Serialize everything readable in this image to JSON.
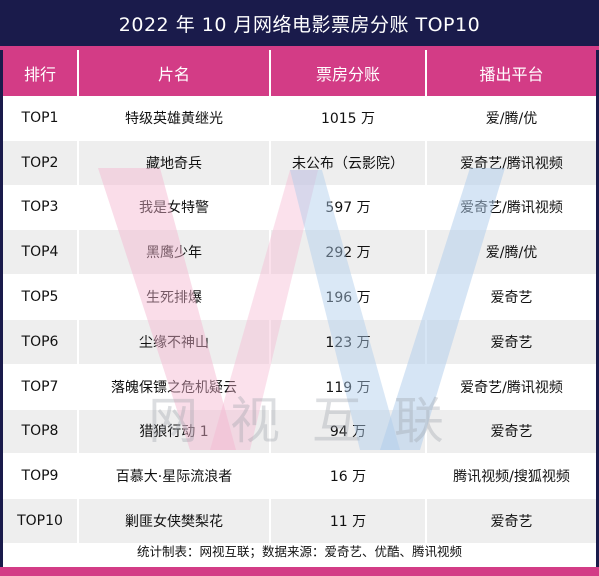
{
  "title": "2022 年 10 月网络电影票房分账 TOP10",
  "columns": [
    "排行",
    "片名",
    "票房分账",
    "播出平台"
  ],
  "rows": [
    {
      "rank": "TOP1",
      "name": "特级英雄黄继光",
      "box": "1015 万",
      "platform": "爱/腾/优"
    },
    {
      "rank": "TOP2",
      "name": "藏地奇兵",
      "box": "未公布（云影院）",
      "platform": "爱奇艺/腾讯视频"
    },
    {
      "rank": "TOP3",
      "name": "我是女特警",
      "box": "597 万",
      "platform": "爱奇艺/腾讯视频"
    },
    {
      "rank": "TOP4",
      "name": "黑鹰少年",
      "box": "292 万",
      "platform": "爱/腾/优"
    },
    {
      "rank": "TOP5",
      "name": "生死排爆",
      "box": "196 万",
      "platform": "爱奇艺"
    },
    {
      "rank": "TOP6",
      "name": "尘缘不神山",
      "box": "123 万",
      "platform": "爱奇艺"
    },
    {
      "rank": "TOP7",
      "name": "落魄保镖之危机疑云",
      "box": "119 万",
      "platform": "爱奇艺/腾讯视频"
    },
    {
      "rank": "TOP8",
      "name": "猎狼行动 1",
      "box": "94 万",
      "platform": "爱奇艺"
    },
    {
      "rank": "TOP9",
      "name": "百慕大·星际流浪者",
      "box": "16 万",
      "platform": "腾讯视频/搜狐视频"
    },
    {
      "rank": "TOP10",
      "name": "剿匪女侠樊梨花",
      "box": "11 万",
      "platform": "爱奇艺"
    }
  ],
  "watermark_text": "网 视 互 联",
  "footer": "统计制表：网视互联；数据来源：爱奇艺、优酷、腾讯视频",
  "colors": {
    "navy": "#1a1b4b",
    "pink": "#d33c86",
    "light_blue": "#aecbec",
    "light_pink": "#f4b3cf"
  }
}
